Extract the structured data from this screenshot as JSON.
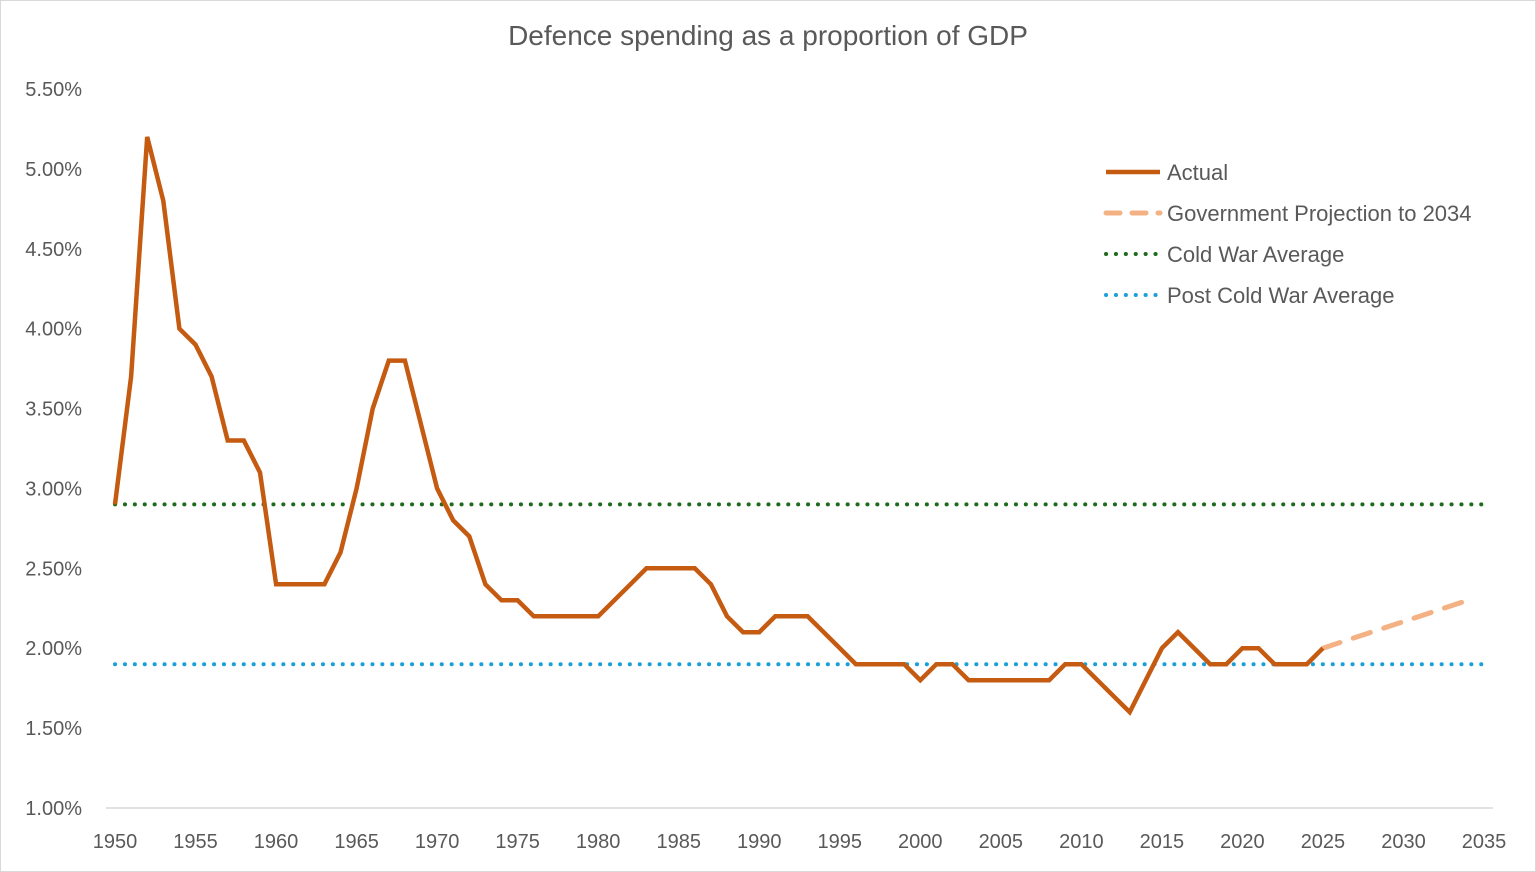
{
  "chart_data": {
    "type": "line",
    "title": "Defence spending as a proportion of GDP",
    "xlabel": "",
    "ylabel": "",
    "xlim": [
      1950,
      2035
    ],
    "ylim": [
      1.0,
      5.5
    ],
    "x_ticks": [
      "1950",
      "1955",
      "1960",
      "1965",
      "1970",
      "1975",
      "1980",
      "1985",
      "1990",
      "1995",
      "2000",
      "2005",
      "2010",
      "2015",
      "2020",
      "2025",
      "2030",
      "2035"
    ],
    "y_ticks": [
      "1.00%",
      "1.50%",
      "2.00%",
      "2.50%",
      "3.00%",
      "3.50%",
      "4.00%",
      "4.50%",
      "5.00%",
      "5.50%"
    ],
    "grid": false,
    "legend_position": "top-right",
    "series": [
      {
        "name": "Actual",
        "style": "solid",
        "color": "#C55A11",
        "x": [
          1950,
          1951,
          1952,
          1953,
          1954,
          1955,
          1956,
          1957,
          1958,
          1959,
          1960,
          1961,
          1962,
          1963,
          1964,
          1965,
          1966,
          1967,
          1968,
          1969,
          1970,
          1971,
          1972,
          1973,
          1974,
          1975,
          1976,
          1977,
          1978,
          1979,
          1980,
          1981,
          1982,
          1983,
          1984,
          1985,
          1986,
          1987,
          1988,
          1989,
          1990,
          1991,
          1992,
          1993,
          1994,
          1995,
          1996,
          1997,
          1998,
          1999,
          2000,
          2001,
          2002,
          2003,
          2004,
          2005,
          2006,
          2007,
          2008,
          2009,
          2010,
          2011,
          2012,
          2013,
          2014,
          2015,
          2016,
          2017,
          2018,
          2019,
          2020,
          2021,
          2022,
          2023,
          2024,
          2025
        ],
        "values": [
          2.9,
          3.7,
          5.2,
          4.8,
          4.0,
          3.9,
          3.7,
          3.3,
          3.3,
          3.1,
          2.4,
          2.4,
          2.4,
          2.4,
          2.6,
          3.0,
          3.5,
          3.8,
          3.8,
          3.4,
          3.0,
          2.8,
          2.7,
          2.4,
          2.3,
          2.3,
          2.2,
          2.2,
          2.2,
          2.2,
          2.2,
          2.3,
          2.4,
          2.5,
          2.5,
          2.5,
          2.5,
          2.4,
          2.2,
          2.1,
          2.1,
          2.2,
          2.2,
          2.2,
          2.1,
          2.0,
          1.9,
          1.9,
          1.9,
          1.9,
          1.8,
          1.9,
          1.9,
          1.8,
          1.8,
          1.8,
          1.8,
          1.8,
          1.8,
          1.9,
          1.9,
          1.8,
          1.7,
          1.6,
          1.8,
          2.0,
          2.1,
          2.0,
          1.9,
          1.9,
          2.0,
          2.0,
          1.9,
          1.9,
          1.9,
          2.0
        ]
      },
      {
        "name": "Government Projection to 2034",
        "style": "dashed",
        "color": "#F4B183",
        "x": [
          2025,
          2034
        ],
        "values": [
          2.0,
          2.3
        ]
      },
      {
        "name": "Cold War Average",
        "style": "dotted",
        "color": "#1E6B1E",
        "x": [
          1950,
          2035
        ],
        "values": [
          2.9,
          2.9
        ]
      },
      {
        "name": "Post Cold War Average",
        "style": "dotted",
        "color": "#1AA0D8",
        "x": [
          1950,
          2035
        ],
        "values": [
          1.9,
          1.9
        ]
      }
    ]
  }
}
